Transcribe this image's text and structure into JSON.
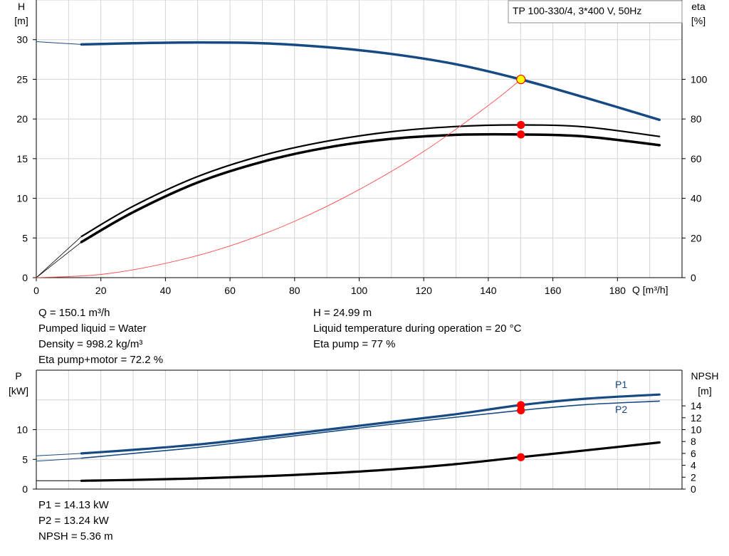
{
  "colors": {
    "blue": "#174a82",
    "black": "#000000",
    "red": "#ff0000",
    "thin_red": "#ff4b4b",
    "yellow": "#ffff00",
    "grid": "#d4d4d4"
  },
  "chart_data": [
    {
      "type": "line",
      "title": "TP 100-330/4, 3*400 V, 50Hz",
      "xlabel": "Q [m³/h]",
      "ylabel_left": [
        "H",
        "[m]"
      ],
      "ylabel_right": [
        "eta",
        "[%]"
      ],
      "xlim": [
        0,
        200
      ],
      "ylim_left": [
        0,
        35
      ],
      "ylim_right": [
        0,
        140
      ],
      "x_ticks": [
        "0",
        "20",
        "40",
        "60",
        "80",
        "100",
        "120",
        "140",
        "160",
        "180"
      ],
      "y_ticks_left": [
        "0",
        "5",
        "10",
        "15",
        "20",
        "25",
        "30"
      ],
      "y_ticks_right": [
        "0",
        "20",
        "40",
        "60",
        "80",
        "100"
      ],
      "grid": true,
      "series": [
        {
          "key": "H",
          "axis": "left",
          "color": "blue",
          "width": 3.5,
          "x": [
            14,
            30,
            50,
            70,
            90,
            110,
            130,
            150,
            170,
            193
          ],
          "y": [
            29.4,
            29.55,
            29.65,
            29.55,
            29.05,
            28.2,
            26.9,
            24.99,
            22.7,
            19.9
          ]
        },
        {
          "key": "H_ext",
          "axis": "left",
          "color": "blue",
          "width": 1,
          "x": [
            0,
            14
          ],
          "y": [
            29.75,
            29.4
          ]
        },
        {
          "key": "eta_pump",
          "axis": "right",
          "color": "black",
          "width": 2.2,
          "x": [
            14,
            30,
            50,
            70,
            90,
            110,
            130,
            150,
            170,
            193
          ],
          "y": [
            20.8,
            36.0,
            51.0,
            61.6,
            68.8,
            73.6,
            76.2,
            77.0,
            76.0,
            71.2
          ]
        },
        {
          "key": "eta_total",
          "axis": "right",
          "color": "black",
          "width": 3.5,
          "x": [
            14,
            30,
            50,
            70,
            90,
            110,
            130,
            150,
            170,
            193
          ],
          "y": [
            18.0,
            33.0,
            48.0,
            58.4,
            65.6,
            70.0,
            72.0,
            72.2,
            71.2,
            66.8
          ]
        },
        {
          "key": "eta_ext_a",
          "axis": "right",
          "color": "black",
          "width": 0.8,
          "x": [
            0,
            14
          ],
          "y": [
            0,
            20.8
          ]
        },
        {
          "key": "eta_ext_b",
          "axis": "right",
          "color": "black",
          "width": 0.8,
          "x": [
            0,
            14
          ],
          "y": [
            0,
            18.0
          ]
        },
        {
          "key": "system_curve",
          "axis": "left",
          "color": "thin_red",
          "width": 0.9,
          "x": [
            0,
            20,
            40,
            60,
            80,
            100,
            120,
            140,
            150.1
          ],
          "y": [
            0,
            0.4,
            1.8,
            4.0,
            7.1,
            11.1,
            15.9,
            21.7,
            24.99
          ]
        }
      ],
      "markers": [
        {
          "axis": "left",
          "x": 150.1,
          "y": 24.99,
          "fill": "yellow",
          "stroke": "red",
          "r": 6
        },
        {
          "axis": "right",
          "x": 150.1,
          "y": 77.0,
          "fill": "red",
          "stroke": "red",
          "r": 5
        },
        {
          "axis": "right",
          "x": 150.1,
          "y": 72.2,
          "fill": "red",
          "stroke": "red",
          "r": 5
        }
      ]
    },
    {
      "type": "line",
      "ylabel_left": [
        "P",
        "[kW]"
      ],
      "ylabel_right": [
        "NPSH",
        "[m]"
      ],
      "xlim": [
        0,
        200
      ],
      "ylim_left": [
        0,
        20
      ],
      "ylim_right": [
        0,
        20
      ],
      "y_ticks_left": [
        "0",
        "5",
        "10"
      ],
      "y_ticks_right": [
        "0",
        "2",
        "4",
        "6",
        "8",
        "10",
        "12",
        "14"
      ],
      "grid": true,
      "series": [
        {
          "key": "P1",
          "name": "P1",
          "axis": "left",
          "color": "blue",
          "width": 3.2,
          "x": [
            14,
            30,
            50,
            70,
            90,
            110,
            130,
            150,
            170,
            193
          ],
          "y": [
            6.0,
            6.6,
            7.5,
            8.7,
            10.0,
            11.3,
            12.6,
            14.13,
            15.2,
            15.9
          ]
        },
        {
          "key": "P2",
          "name": "P2",
          "axis": "left",
          "color": "blue",
          "width": 1.6,
          "x": [
            14,
            30,
            50,
            70,
            90,
            110,
            130,
            150,
            170,
            193
          ],
          "y": [
            5.2,
            6.0,
            7.0,
            8.3,
            9.6,
            10.9,
            12.1,
            13.24,
            14.2,
            14.8
          ]
        },
        {
          "key": "P1_ext",
          "axis": "left",
          "color": "blue",
          "width": 1,
          "x": [
            0,
            14
          ],
          "y": [
            5.6,
            6.0
          ]
        },
        {
          "key": "P2_ext",
          "axis": "left",
          "color": "blue",
          "width": 1,
          "x": [
            0,
            14
          ],
          "y": [
            4.7,
            5.2
          ]
        },
        {
          "key": "NPSH",
          "axis": "right",
          "color": "black",
          "width": 3.2,
          "x": [
            14,
            30,
            50,
            70,
            90,
            110,
            130,
            150,
            170,
            193
          ],
          "y": [
            1.4,
            1.55,
            1.8,
            2.15,
            2.65,
            3.3,
            4.2,
            5.36,
            6.5,
            7.85
          ]
        },
        {
          "key": "NPSH_ext",
          "axis": "right",
          "color": "black",
          "width": 1,
          "x": [
            0,
            14
          ],
          "y": [
            1.4,
            1.4
          ]
        }
      ],
      "markers": [
        {
          "axis": "left",
          "x": 150.1,
          "y": 14.13,
          "fill": "red",
          "stroke": "red",
          "r": 5
        },
        {
          "axis": "left",
          "x": 150.1,
          "y": 13.24,
          "fill": "red",
          "stroke": "red",
          "r": 5
        },
        {
          "axis": "right",
          "x": 150.1,
          "y": 5.36,
          "fill": "red",
          "stroke": "red",
          "r": 5
        }
      ]
    }
  ],
  "info": {
    "left": [
      "Q = 150.1 m³/h",
      "Pumped liquid = Water",
      "Density = 998.2 kg/m³",
      "Eta pump+motor = 72.2 %"
    ],
    "right": [
      "H = 24.99 m",
      "Liquid temperature during operation = 20 °C",
      "Eta pump = 77 %"
    ],
    "bottom": [
      "P1 = 14.13 kW",
      "P2 = 13.24 kW",
      "NPSH = 5.36 m"
    ]
  }
}
